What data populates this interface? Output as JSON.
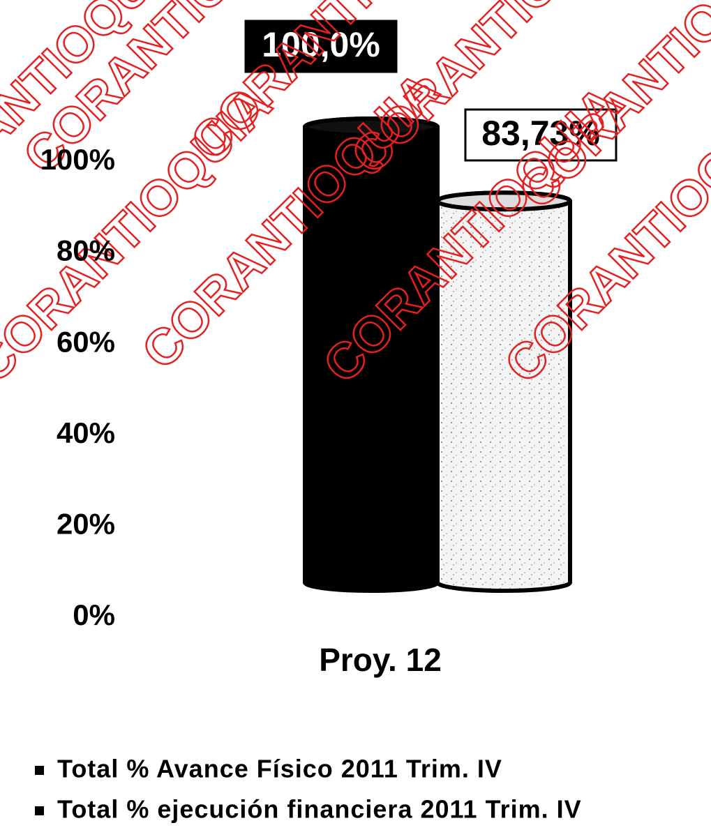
{
  "chart_data": {
    "type": "bar",
    "categories": [
      "Proy. 12"
    ],
    "series": [
      {
        "name": "Total % Avance Físico 2011  Trim. IV",
        "color": "#000000",
        "values": [
          100
        ],
        "value_labels": [
          "100,0%"
        ]
      },
      {
        "name": "Total % ejecución financiera 2011  Trim. IV",
        "color": "#ffffff",
        "values": [
          83.73
        ],
        "value_labels": [
          "83,73%"
        ]
      }
    ],
    "ylim": [
      0,
      100
    ],
    "yticks": [
      {
        "value": 0,
        "label": "0%"
      },
      {
        "value": 20,
        "label": "20%"
      },
      {
        "value": 40,
        "label": "40%"
      },
      {
        "value": 60,
        "label": "60%"
      },
      {
        "value": 80,
        "label": "80%"
      },
      {
        "value": 100,
        "label": "100%"
      }
    ],
    "watermark": "CORANTIOQUIA"
  }
}
